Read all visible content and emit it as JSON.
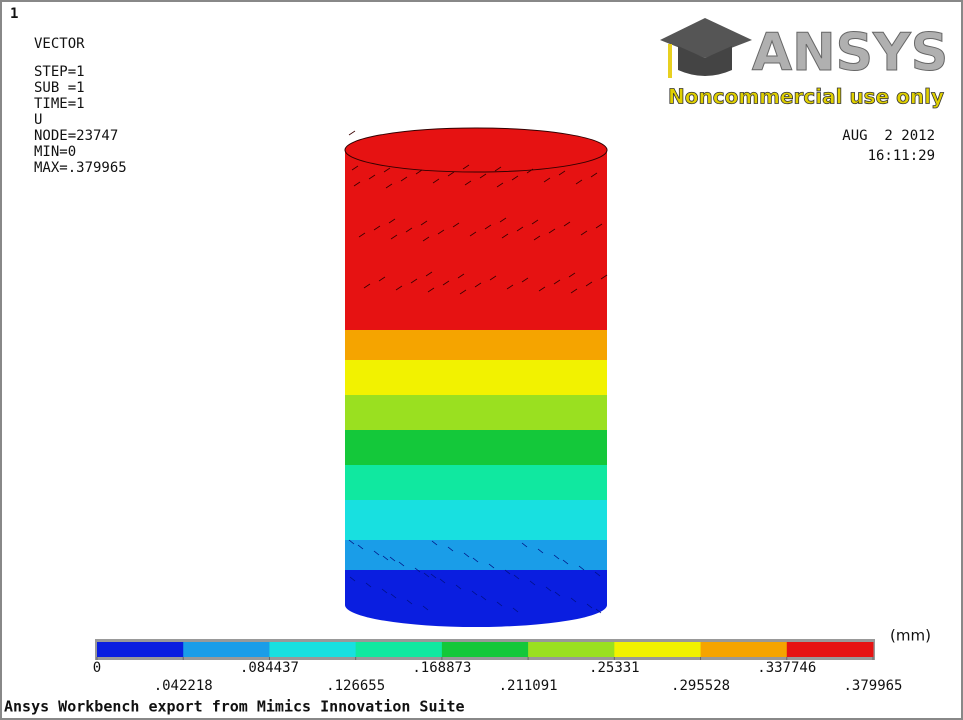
{
  "window_number": "1",
  "info": [
    "VECTOR",
    "STEP=1",
    "SUB =1",
    "TIME=1",
    "U",
    "NODE=23747",
    "MIN=0",
    "MAX=.379965"
  ],
  "logo": {
    "brand": "ANSYS",
    "notice": "Noncommercial use only"
  },
  "date": "AUG  2 2012",
  "time": "16:11:29",
  "legend": {
    "unit": "(mm)",
    "colors": [
      "#0a1ee0",
      "#1a9de8",
      "#18e0e0",
      "#10e8a0",
      "#14c83a",
      "#9ae020",
      "#f2f200",
      "#f5a400",
      "#e61212"
    ],
    "ticks": [
      0,
      {
        "value": 0.042218,
        "label": ".042218"
      },
      {
        "value": 0.084437,
        "label": ".084437"
      },
      {
        "value": 0.126655,
        "label": ".126655"
      },
      {
        "value": 0.168873,
        "label": ".168873"
      },
      {
        "value": 0.211091,
        "label": ".211091"
      },
      {
        "value": 0.25331,
        "label": ".25331"
      },
      {
        "value": 0.295528,
        "label": ".295528"
      },
      {
        "value": 0.337746,
        "label": ".337746"
      },
      {
        "value": 0.379965,
        "label": ".379965"
      }
    ]
  },
  "footer": "Ansys Workbench export from Mimics Innovation Suite"
}
